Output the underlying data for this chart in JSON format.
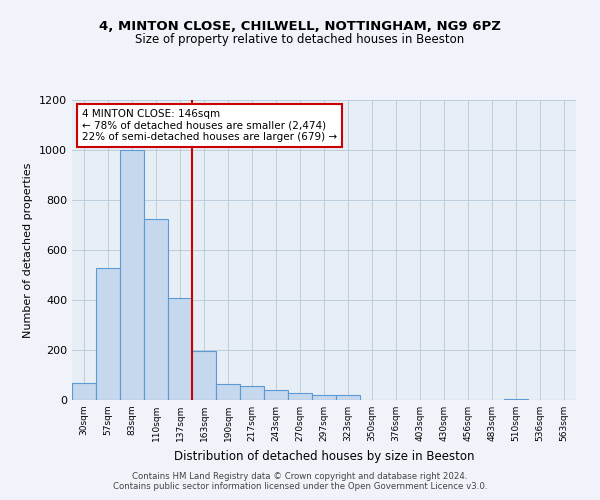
{
  "title1": "4, MINTON CLOSE, CHILWELL, NOTTINGHAM, NG9 6PZ",
  "title2": "Size of property relative to detached houses in Beeston",
  "xlabel": "Distribution of detached houses by size in Beeston",
  "ylabel": "Number of detached properties",
  "bin_labels": [
    "30sqm",
    "57sqm",
    "83sqm",
    "110sqm",
    "137sqm",
    "163sqm",
    "190sqm",
    "217sqm",
    "243sqm",
    "270sqm",
    "297sqm",
    "323sqm",
    "350sqm",
    "376sqm",
    "403sqm",
    "430sqm",
    "456sqm",
    "483sqm",
    "510sqm",
    "536sqm",
    "563sqm"
  ],
  "bar_values": [
    70,
    530,
    1000,
    725,
    410,
    195,
    65,
    55,
    40,
    30,
    20,
    20,
    0,
    0,
    0,
    0,
    0,
    0,
    5,
    0,
    0
  ],
  "bar_color": "#c5d8ed",
  "bar_edge_color": "#5b9bd5",
  "red_line_x": 4,
  "annotation_title": "4 MINTON CLOSE: 146sqm",
  "annotation_line1": "← 78% of detached houses are smaller (2,474)",
  "annotation_line2": "22% of semi-detached houses are larger (679) →",
  "annotation_box_color": "#ffffff",
  "annotation_box_edge_color": "#cc0000",
  "ylim": [
    0,
    1200
  ],
  "yticks": [
    0,
    200,
    400,
    600,
    800,
    1000,
    1200
  ],
  "footnote1": "Contains HM Land Registry data © Crown copyright and database right 2024.",
  "footnote2": "Contains public sector information licensed under the Open Government Licence v3.0.",
  "fig_bg_color": "#f0f4fa",
  "plot_bg_color": "#e8eef6"
}
